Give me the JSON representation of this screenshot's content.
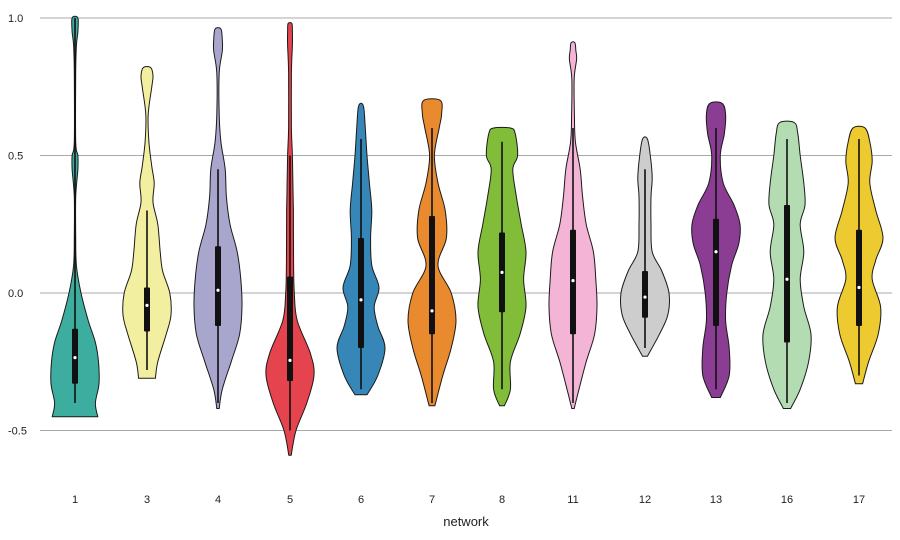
{
  "chart_data": {
    "type": "violin",
    "xlabel": "network",
    "ylabel": "",
    "ylim": [
      -0.65,
      1.0
    ],
    "yticks": [
      -0.5,
      0.0,
      0.5,
      1.0
    ],
    "ytick_labels": [
      "-0.5",
      "0.0",
      "0.5",
      "1.0"
    ],
    "grid": "horizontal",
    "categories": [
      "1",
      "3",
      "4",
      "5",
      "6",
      "7",
      "8",
      "11",
      "12",
      "13",
      "16",
      "17"
    ],
    "violins": [
      {
        "category": "1",
        "color": "#3dada0",
        "min": -0.45,
        "max": 1.0,
        "q1": -0.33,
        "median": -0.235,
        "q3": -0.13,
        "whisker_low": -0.4,
        "whisker_high": 1.0,
        "density": [
          [
            -0.45,
            0.95
          ],
          [
            -0.4,
            0.85
          ],
          [
            -0.33,
            1.0
          ],
          [
            -0.25,
            0.98
          ],
          [
            -0.18,
            0.85
          ],
          [
            -0.1,
            0.55
          ],
          [
            0.0,
            0.25
          ],
          [
            0.1,
            0.06
          ],
          [
            0.2,
            0.03
          ],
          [
            0.35,
            0.03
          ],
          [
            0.45,
            0.12
          ],
          [
            0.5,
            0.12
          ],
          [
            0.55,
            0.03
          ],
          [
            0.8,
            0.03
          ],
          [
            0.9,
            0.06
          ],
          [
            0.95,
            0.12
          ],
          [
            1.0,
            0.12
          ]
        ]
      },
      {
        "category": "3",
        "color": "#f3efa0",
        "min": -0.31,
        "max": 0.82,
        "q1": -0.14,
        "median": -0.045,
        "q3": 0.02,
        "whisker_low": -0.28,
        "whisker_high": 0.3,
        "density": [
          [
            -0.31,
            0.35
          ],
          [
            -0.25,
            0.45
          ],
          [
            -0.15,
            0.8
          ],
          [
            -0.08,
            1.0
          ],
          [
            0.0,
            0.95
          ],
          [
            0.08,
            0.65
          ],
          [
            0.15,
            0.55
          ],
          [
            0.25,
            0.45
          ],
          [
            0.33,
            0.25
          ],
          [
            0.4,
            0.3
          ],
          [
            0.46,
            0.2
          ],
          [
            0.55,
            0.08
          ],
          [
            0.65,
            0.05
          ],
          [
            0.75,
            0.2
          ],
          [
            0.79,
            0.25
          ],
          [
            0.82,
            0.15
          ]
        ]
      },
      {
        "category": "4",
        "color": "#a9a6ce",
        "min": -0.42,
        "max": 0.96,
        "q1": -0.12,
        "median": 0.01,
        "q3": 0.17,
        "whisker_low": -0.4,
        "whisker_high": 0.45,
        "density": [
          [
            -0.42,
            0.05
          ],
          [
            -0.35,
            0.18
          ],
          [
            -0.25,
            0.55
          ],
          [
            -0.15,
            0.9
          ],
          [
            -0.05,
            1.0
          ],
          [
            0.05,
            0.95
          ],
          [
            0.15,
            0.8
          ],
          [
            0.25,
            0.5
          ],
          [
            0.35,
            0.35
          ],
          [
            0.45,
            0.3
          ],
          [
            0.55,
            0.12
          ],
          [
            0.65,
            0.05
          ],
          [
            0.8,
            0.05
          ],
          [
            0.88,
            0.18
          ],
          [
            0.92,
            0.18
          ],
          [
            0.96,
            0.12
          ]
        ]
      },
      {
        "category": "5",
        "color": "#e5434d",
        "min": -0.59,
        "max": 0.98,
        "q1": -0.32,
        "median": -0.245,
        "q3": 0.06,
        "whisker_low": -0.5,
        "whisker_high": 0.5,
        "density": [
          [
            -0.59,
            0.05
          ],
          [
            -0.5,
            0.25
          ],
          [
            -0.4,
            0.7
          ],
          [
            -0.3,
            1.0
          ],
          [
            -0.22,
            0.85
          ],
          [
            -0.1,
            0.3
          ],
          [
            0.0,
            0.18
          ],
          [
            0.1,
            0.15
          ],
          [
            0.3,
            0.14
          ],
          [
            0.4,
            0.12
          ],
          [
            0.5,
            0.1
          ],
          [
            0.6,
            0.06
          ],
          [
            0.8,
            0.06
          ],
          [
            0.9,
            0.1
          ],
          [
            0.95,
            0.1
          ],
          [
            0.98,
            0.08
          ]
        ]
      },
      {
        "category": "6",
        "color": "#3687b7",
        "min": -0.37,
        "max": 0.68,
        "q1": -0.2,
        "median": -0.025,
        "q3": 0.2,
        "whisker_low": -0.35,
        "whisker_high": 0.56,
        "density": [
          [
            -0.37,
            0.25
          ],
          [
            -0.3,
            0.7
          ],
          [
            -0.2,
            1.0
          ],
          [
            -0.12,
            0.7
          ],
          [
            -0.05,
            0.55
          ],
          [
            0.02,
            0.75
          ],
          [
            0.1,
            0.45
          ],
          [
            0.2,
            0.4
          ],
          [
            0.3,
            0.45
          ],
          [
            0.4,
            0.35
          ],
          [
            0.5,
            0.25
          ],
          [
            0.6,
            0.18
          ],
          [
            0.68,
            0.1
          ]
        ]
      },
      {
        "category": "7",
        "color": "#ea8a2e",
        "min": -0.41,
        "max": 0.7,
        "q1": -0.15,
        "median": -0.065,
        "q3": 0.28,
        "whisker_low": -0.4,
        "whisker_high": 0.6,
        "density": [
          [
            -0.41,
            0.12
          ],
          [
            -0.3,
            0.45
          ],
          [
            -0.2,
            0.8
          ],
          [
            -0.1,
            1.0
          ],
          [
            0.0,
            0.8
          ],
          [
            0.1,
            0.25
          ],
          [
            0.2,
            0.6
          ],
          [
            0.3,
            0.55
          ],
          [
            0.4,
            0.25
          ],
          [
            0.5,
            0.1
          ],
          [
            0.6,
            0.3
          ],
          [
            0.65,
            0.4
          ],
          [
            0.7,
            0.35
          ]
        ]
      },
      {
        "category": "8",
        "color": "#82bd3a",
        "min": -0.41,
        "max": 0.6,
        "q1": -0.07,
        "median": 0.075,
        "q3": 0.22,
        "whisker_low": -0.35,
        "whisker_high": 0.55,
        "density": [
          [
            -0.41,
            0.1
          ],
          [
            -0.35,
            0.35
          ],
          [
            -0.25,
            0.35
          ],
          [
            -0.15,
            0.75
          ],
          [
            -0.05,
            1.0
          ],
          [
            0.05,
            0.9
          ],
          [
            0.15,
            1.0
          ],
          [
            0.25,
            0.8
          ],
          [
            0.35,
            0.6
          ],
          [
            0.45,
            0.45
          ],
          [
            0.5,
            0.65
          ],
          [
            0.58,
            0.55
          ],
          [
            0.6,
            0.35
          ]
        ]
      },
      {
        "category": "11",
        "color": "#f4b4d5",
        "min": -0.42,
        "max": 0.91,
        "q1": -0.15,
        "median": 0.045,
        "q3": 0.23,
        "whisker_low": -0.4,
        "whisker_high": 0.6,
        "density": [
          [
            -0.42,
            0.05
          ],
          [
            -0.35,
            0.25
          ],
          [
            -0.25,
            0.55
          ],
          [
            -0.15,
            0.9
          ],
          [
            -0.05,
            1.0
          ],
          [
            0.05,
            0.95
          ],
          [
            0.15,
            0.85
          ],
          [
            0.25,
            0.55
          ],
          [
            0.35,
            0.4
          ],
          [
            0.45,
            0.3
          ],
          [
            0.55,
            0.1
          ],
          [
            0.65,
            0.06
          ],
          [
            0.78,
            0.05
          ],
          [
            0.85,
            0.15
          ],
          [
            0.88,
            0.12
          ],
          [
            0.91,
            0.08
          ]
        ]
      },
      {
        "category": "12",
        "color": "#cdcdcd",
        "min": -0.23,
        "max": 0.56,
        "q1": -0.09,
        "median": -0.015,
        "q3": 0.08,
        "whisker_low": -0.2,
        "whisker_high": 0.45,
        "density": [
          [
            -0.23,
            0.1
          ],
          [
            -0.15,
            0.6
          ],
          [
            -0.08,
            0.95
          ],
          [
            0.0,
            1.0
          ],
          [
            0.08,
            0.7
          ],
          [
            0.15,
            0.3
          ],
          [
            0.25,
            0.25
          ],
          [
            0.35,
            0.25
          ],
          [
            0.42,
            0.3
          ],
          [
            0.5,
            0.22
          ],
          [
            0.56,
            0.1
          ]
        ]
      },
      {
        "category": "13",
        "color": "#8a3d92",
        "min": -0.38,
        "max": 0.69,
        "q1": -0.12,
        "median": 0.15,
        "q3": 0.27,
        "whisker_low": -0.35,
        "whisker_high": 0.6,
        "density": [
          [
            -0.38,
            0.18
          ],
          [
            -0.3,
            0.55
          ],
          [
            -0.2,
            0.55
          ],
          [
            -0.1,
            0.4
          ],
          [
            0.0,
            0.45
          ],
          [
            0.1,
            0.65
          ],
          [
            0.18,
            0.95
          ],
          [
            0.25,
            1.0
          ],
          [
            0.32,
            0.75
          ],
          [
            0.4,
            0.3
          ],
          [
            0.5,
            0.18
          ],
          [
            0.58,
            0.35
          ],
          [
            0.65,
            0.4
          ],
          [
            0.69,
            0.25
          ]
        ]
      },
      {
        "category": "16",
        "color": "#b4dcb3",
        "min": -0.42,
        "max": 0.62,
        "q1": -0.18,
        "median": 0.05,
        "q3": 0.32,
        "whisker_low": -0.4,
        "whisker_high": 0.56,
        "density": [
          [
            -0.42,
            0.15
          ],
          [
            -0.35,
            0.55
          ],
          [
            -0.25,
            0.9
          ],
          [
            -0.15,
            1.0
          ],
          [
            -0.05,
            0.7
          ],
          [
            0.05,
            0.55
          ],
          [
            0.15,
            0.7
          ],
          [
            0.25,
            0.55
          ],
          [
            0.32,
            0.75
          ],
          [
            0.4,
            0.7
          ],
          [
            0.5,
            0.55
          ],
          [
            0.58,
            0.45
          ],
          [
            0.62,
            0.3
          ]
        ]
      },
      {
        "category": "17",
        "color": "#ecca30",
        "min": -0.33,
        "max": 0.6,
        "q1": -0.12,
        "median": 0.02,
        "q3": 0.23,
        "whisker_low": -0.3,
        "whisker_high": 0.56,
        "density": [
          [
            -0.33,
            0.15
          ],
          [
            -0.25,
            0.4
          ],
          [
            -0.15,
            0.8
          ],
          [
            -0.05,
            0.9
          ],
          [
            0.05,
            0.55
          ],
          [
            0.12,
            0.7
          ],
          [
            0.2,
            1.0
          ],
          [
            0.3,
            0.7
          ],
          [
            0.4,
            0.45
          ],
          [
            0.48,
            0.55
          ],
          [
            0.55,
            0.45
          ],
          [
            0.6,
            0.25
          ]
        ]
      }
    ]
  }
}
